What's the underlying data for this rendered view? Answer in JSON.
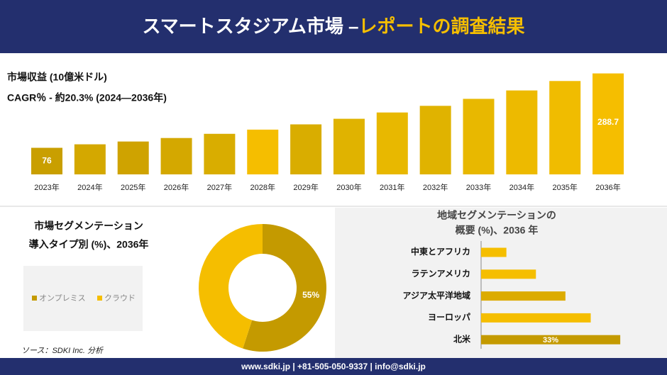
{
  "header": {
    "title_main": "スマートスタジアム市場 –",
    "title_highlight": "レポートの調査結果"
  },
  "chart_data": [
    {
      "type": "bar",
      "title": "市場収益 (10億米ドル)",
      "subtitle": "CAGR％ - 約20.3% (2024—2036年)",
      "categories": [
        "2023年",
        "2024年",
        "2025年",
        "2026年",
        "2027年",
        "2028年",
        "2029年",
        "2030年",
        "2031年",
        "2032年",
        "2033年",
        "2034年",
        "2035年",
        "2036年"
      ],
      "values": [
        76,
        86,
        94,
        104,
        116,
        128,
        143,
        159,
        177,
        196,
        216,
        240,
        267,
        288.7
      ],
      "value_labels": [
        "76",
        null,
        null,
        null,
        null,
        null,
        null,
        null,
        null,
        null,
        null,
        null,
        null,
        "288.7"
      ],
      "colors": [
        "#c99f00",
        "#d4a800",
        "#cfa300",
        "#d4a800",
        "#d9ad00",
        "#f5be00",
        "#d9ad00",
        "#e0b300",
        "#e8b800",
        "#e0b300",
        "#e8b800",
        "#edba00",
        "#f0bc00",
        "#f5be00"
      ],
      "ylim": [
        0,
        300
      ]
    },
    {
      "type": "donut",
      "title_lines": [
        "市場セグメンテーション",
        "導入タイプ別 (%)、2036年"
      ],
      "categories": [
        "オンプレミス",
        "クラウド"
      ],
      "values": [
        55,
        45
      ],
      "value_labels": [
        "55%",
        null
      ],
      "colors": [
        "#c49a00",
        "#f5be00"
      ]
    },
    {
      "type": "hbar",
      "title_lines": [
        "地域セグメンテーションの",
        "概要 (%)、2036 年"
      ],
      "categories": [
        "中東とアフリカ",
        "ラテンアメリカ",
        "アジア太平洋地域",
        "ヨーロッパ",
        "北米"
      ],
      "values": [
        6,
        13,
        20,
        26,
        33
      ],
      "value_labels": [
        null,
        null,
        null,
        null,
        "33%"
      ],
      "colors": [
        "#f5be00",
        "#f5be00",
        "#dcab00",
        "#f5be00",
        "#c49a00"
      ],
      "xlim": [
        0,
        35
      ]
    }
  ],
  "source": "ソース：SDKI Inc. 分析",
  "footer": "www.sdki.jp | +81-505-050-9337 | info@sdki.jp"
}
